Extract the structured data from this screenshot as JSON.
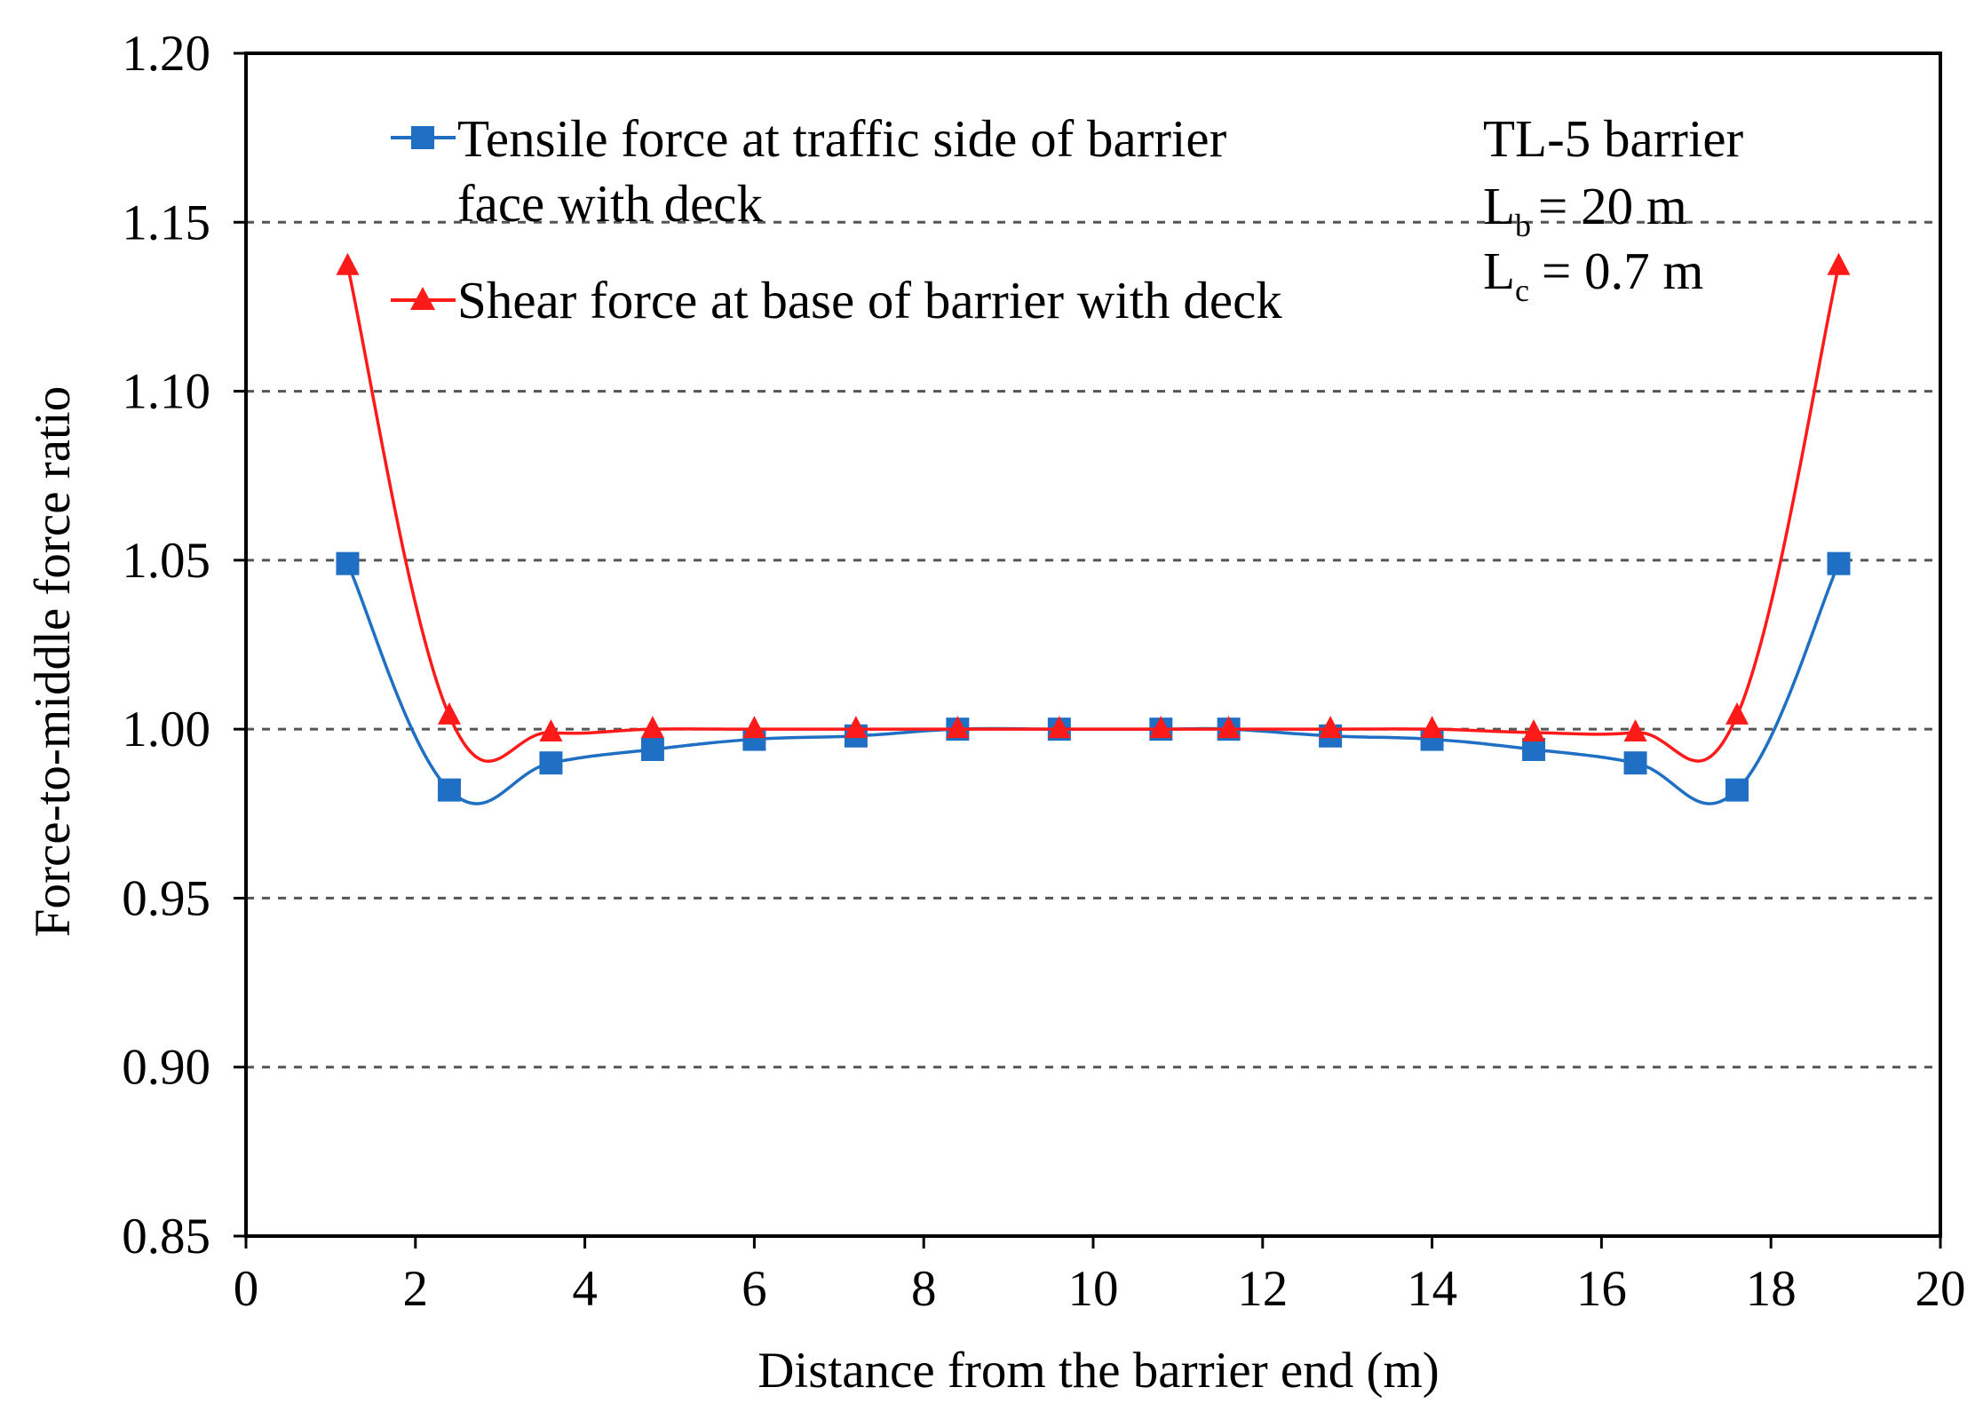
{
  "chart_data": {
    "type": "line",
    "xlabel": "Distance from the barrier end (m)",
    "ylabel": "Force-to-middle force ratio",
    "xlim": [
      0,
      20
    ],
    "ylim": [
      0.85,
      1.2
    ],
    "xticks": [
      0,
      2,
      4,
      6,
      8,
      10,
      12,
      14,
      16,
      18,
      20
    ],
    "yticks": [
      0.85,
      0.9,
      0.95,
      1.0,
      1.05,
      1.1,
      1.15,
      1.2
    ],
    "xtick_labels": [
      "0",
      "2",
      "4",
      "6",
      "8",
      "10",
      "12",
      "14",
      "16",
      "18",
      "20"
    ],
    "ytick_labels": [
      "0.85",
      "0.90",
      "0.95",
      "1.00",
      "1.05",
      "1.10",
      "1.15",
      "1.20"
    ],
    "grid": "horizontal dashed",
    "legend_position": "top-left",
    "x": [
      1.2,
      2.4,
      3.6,
      4.8,
      6.0,
      7.2,
      8.4,
      9.6,
      10.8,
      11.6,
      12.8,
      14.0,
      15.2,
      16.4,
      17.6,
      18.8
    ],
    "series": [
      {
        "name_lines": [
          "Tensile force at traffic side of barrier",
          "face with deck"
        ],
        "color": "#1f6fc4",
        "marker": "square",
        "values": [
          1.049,
          0.982,
          0.99,
          0.994,
          0.997,
          0.998,
          1.0,
          1.0,
          1.0,
          1.0,
          0.998,
          0.997,
          0.994,
          0.99,
          0.982,
          1.049
        ]
      },
      {
        "name_lines": [
          "Shear force at base of barrier with deck"
        ],
        "color": "#ff1a1a",
        "marker": "triangle",
        "values": [
          1.137,
          1.004,
          0.999,
          1.0,
          1.0,
          1.0,
          1.0,
          1.0,
          1.0,
          1.0,
          1.0,
          1.0,
          0.999,
          0.999,
          1.004,
          1.137
        ]
      }
    ],
    "annotation": {
      "line1": "TL-5 barrier",
      "lb_main": "L",
      "lb_sub": "b",
      "lb_value": "= 20 m",
      "lc_main": "L",
      "lc_sub": "c",
      "lc_value": "= 0.7 m"
    }
  }
}
